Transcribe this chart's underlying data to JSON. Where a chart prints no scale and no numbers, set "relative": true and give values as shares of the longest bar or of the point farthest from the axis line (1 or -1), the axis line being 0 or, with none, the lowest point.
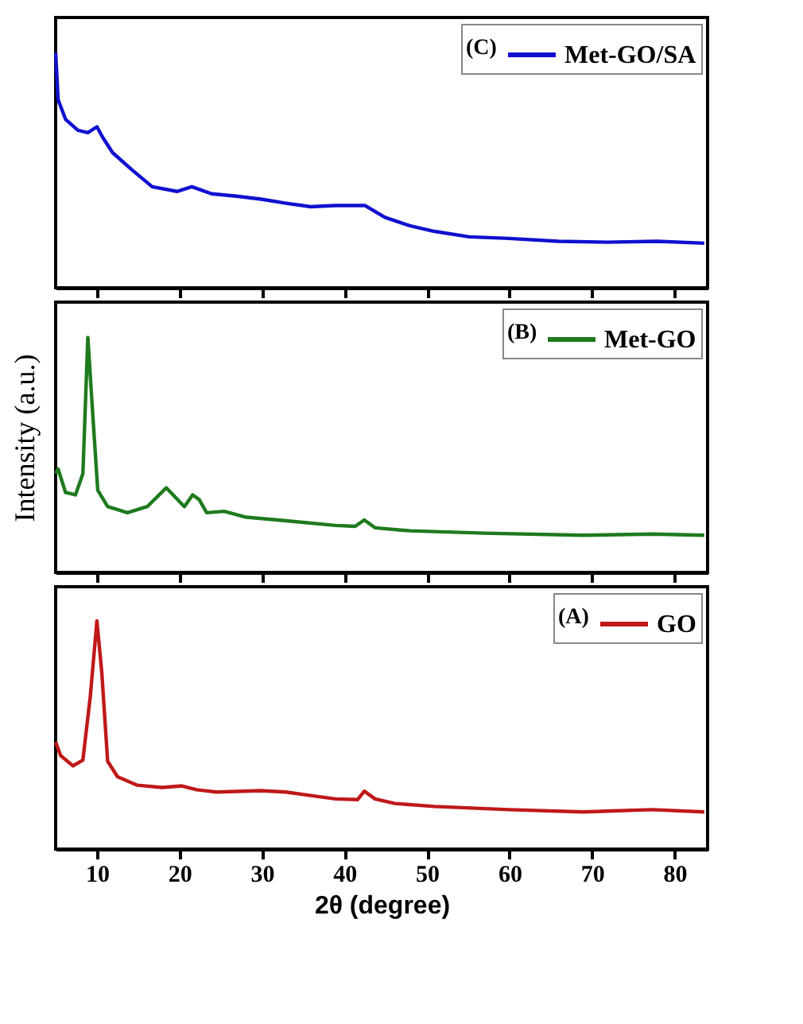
{
  "chart_data": [
    {
      "type": "line",
      "relative": true,
      "legend_title": "(C)",
      "legend": "top right",
      "tick_labels": false,
      "xlim": [
        5,
        84
      ],
      "xticks": [
        10,
        20,
        30,
        40,
        50,
        60,
        70,
        80
      ],
      "series": [
        {
          "name": "Met-GO/SA",
          "color": "#1010d0",
          "x": [
            5.0,
            5.3,
            6.2,
            7.7,
            8.9,
            10.0,
            10.7,
            11.9,
            14.3,
            16.7,
            19.7,
            21.5,
            23.9,
            26.9,
            29.9,
            32.9,
            35.9,
            38.9,
            42.5,
            44.9,
            47.9,
            50.9,
            55.1,
            59.9,
            65.9,
            71.9,
            77.9,
            83.6
          ],
          "values": [
            1.0,
            0.8,
            0.717,
            0.67,
            0.66,
            0.685,
            0.64,
            0.575,
            0.5,
            0.43,
            0.41,
            0.43,
            0.4,
            0.39,
            0.377,
            0.36,
            0.345,
            0.35,
            0.35,
            0.3,
            0.264,
            0.24,
            0.217,
            0.21,
            0.198,
            0.194,
            0.198,
            0.19
          ]
        }
      ]
    },
    {
      "type": "line",
      "relative": true,
      "legend_title": "(B)",
      "legend": "top right",
      "tick_labels": false,
      "ylabel": "Intensity (a.u.)",
      "xlim": [
        5,
        84
      ],
      "xticks": [
        10,
        20,
        30,
        40,
        50,
        60,
        70,
        80
      ],
      "series": [
        {
          "name": "Met-GO",
          "color": "#1e7a1e",
          "x": [
            5.0,
            5.3,
            6.2,
            7.4,
            8.3,
            8.9,
            9.5,
            10.1,
            11.3,
            13.7,
            16.1,
            18.4,
            20.6,
            21.6,
            22.4,
            23.3,
            25.4,
            28.1,
            32.9,
            38.9,
            41.3,
            42.4,
            43.7,
            47.9,
            56.9,
            68.9,
            77.3,
            83.6
          ],
          "values": [
            0.42,
            0.44,
            0.34,
            0.33,
            0.42,
            1.0,
            0.67,
            0.35,
            0.28,
            0.254,
            0.28,
            0.36,
            0.28,
            0.33,
            0.31,
            0.254,
            0.26,
            0.235,
            0.22,
            0.2,
            0.196,
            0.223,
            0.19,
            0.177,
            0.167,
            0.158,
            0.163,
            0.158
          ]
        }
      ]
    },
    {
      "type": "line",
      "relative": true,
      "legend_title": "(A)",
      "legend": "top right",
      "tick_labels": "x",
      "xlabel": "2θ (degree)",
      "xlim": [
        5,
        84
      ],
      "xticks": [
        10,
        20,
        30,
        40,
        50,
        60,
        70,
        80
      ],
      "series": [
        {
          "name": "GO",
          "color": "#c01818",
          "x": [
            5.0,
            5.6,
            7.1,
            8.3,
            9.2,
            10.0,
            10.6,
            11.3,
            12.5,
            14.9,
            17.9,
            20.3,
            22.1,
            24.5,
            29.9,
            32.9,
            35.9,
            38.9,
            41.6,
            42.4,
            43.7,
            46.1,
            50.9,
            59.9,
            68.9,
            77.3,
            83.6
          ],
          "values": [
            0.47,
            0.41,
            0.365,
            0.39,
            0.67,
            1.0,
            0.77,
            0.385,
            0.317,
            0.28,
            0.27,
            0.277,
            0.26,
            0.25,
            0.256,
            0.25,
            0.235,
            0.22,
            0.217,
            0.254,
            0.22,
            0.2,
            0.187,
            0.173,
            0.163,
            0.173,
            0.163
          ]
        }
      ]
    }
  ]
}
